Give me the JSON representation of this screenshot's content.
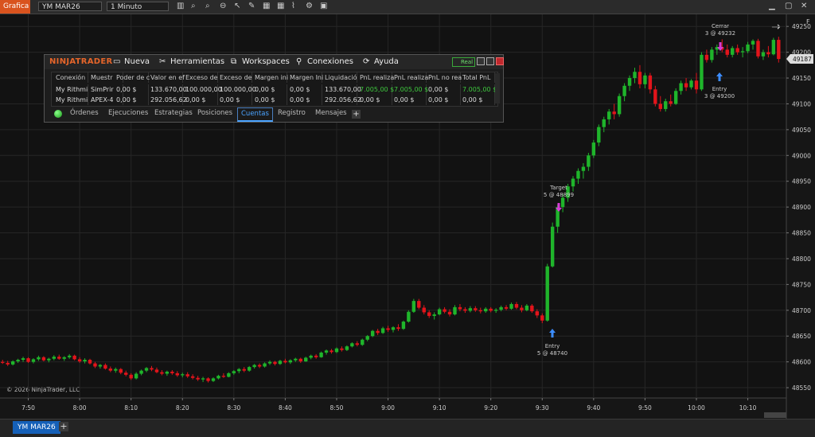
{
  "toolbar": {
    "app_button": "Grafica",
    "instrument": "YM MAR26",
    "interval": "1 Minuto"
  },
  "chart_data": {
    "type": "candlestick",
    "up_color": "#1fb52b",
    "down_color": "#e3141b",
    "ylim": [
      48530,
      49275
    ],
    "yticks": [
      48550,
      48600,
      48650,
      48700,
      48750,
      48800,
      48850,
      48900,
      48950,
      49000,
      49050,
      49100,
      49150,
      49200,
      49250
    ],
    "xlim": [
      -0.5,
      152.5
    ],
    "xticks": [
      {
        "value": 5,
        "label": "7:50"
      },
      {
        "value": 15,
        "label": "8:00"
      },
      {
        "value": 25,
        "label": "8:10"
      },
      {
        "value": 35,
        "label": "8:20"
      },
      {
        "value": 45,
        "label": "8:30"
      },
      {
        "value": 55,
        "label": "8:40"
      },
      {
        "value": 65,
        "label": "8:50"
      },
      {
        "value": 75,
        "label": "9:00"
      },
      {
        "value": 85,
        "label": "9:10"
      },
      {
        "value": 95,
        "label": "9:20"
      },
      {
        "value": 105,
        "label": "9:30"
      },
      {
        "value": 115,
        "label": "9:40"
      },
      {
        "value": 125,
        "label": "9:50"
      },
      {
        "value": 135,
        "label": "10:00"
      },
      {
        "value": 145,
        "label": "10:10"
      }
    ],
    "grid": true,
    "last_price": 49187,
    "axis_flag": "F",
    "copyright": "© 2026 NinjaTrader, LLC",
    "executions": [
      {
        "label": "Entry",
        "detail": "5 @ 48740",
        "side": "buy"
      },
      {
        "label": "Target",
        "detail": "5 @ 48899",
        "side": "sell"
      },
      {
        "label": "Cerrar",
        "detail": "3 @ 49232",
        "side": "sell"
      },
      {
        "label": "Entry",
        "detail": "3 @ 49200",
        "side": "buy"
      }
    ],
    "candles": [
      [
        48600,
        48604,
        48596,
        48598
      ],
      [
        48598,
        48602,
        48592,
        48595
      ],
      [
        48595,
        48603,
        48593,
        48601
      ],
      [
        48601,
        48606,
        48598,
        48604
      ],
      [
        48604,
        48610,
        48600,
        48607
      ],
      [
        48607,
        48609,
        48598,
        48600
      ],
      [
        48600,
        48607,
        48597,
        48605
      ],
      [
        48605,
        48612,
        48602,
        48609
      ],
      [
        48609,
        48611,
        48601,
        48603
      ],
      [
        48603,
        48608,
        48599,
        48606
      ],
      [
        48606,
        48613,
        48603,
        48610
      ],
      [
        48610,
        48614,
        48604,
        48606
      ],
      [
        48606,
        48611,
        48602,
        48609
      ],
      [
        48609,
        48615,
        48606,
        48612
      ],
      [
        48612,
        48614,
        48603,
        48605
      ],
      [
        48605,
        48609,
        48598,
        48601
      ],
      [
        48601,
        48607,
        48597,
        48604
      ],
      [
        48604,
        48606,
        48595,
        48597
      ],
      [
        48597,
        48600,
        48588,
        48591
      ],
      [
        48591,
        48596,
        48587,
        48594
      ],
      [
        48594,
        48597,
        48585,
        48587
      ],
      [
        48587,
        48591,
        48580,
        48583
      ],
      [
        48583,
        48589,
        48579,
        48586
      ],
      [
        48586,
        48588,
        48576,
        48579
      ],
      [
        48579,
        48583,
        48572,
        48575
      ],
      [
        48575,
        48578,
        48565,
        48568
      ],
      [
        48568,
        48580,
        48566,
        48577
      ],
      [
        48577,
        48585,
        48574,
        48583
      ],
      [
        48583,
        48590,
        48580,
        48588
      ],
      [
        48588,
        48592,
        48582,
        48585
      ],
      [
        48585,
        48589,
        48578,
        48580
      ],
      [
        48580,
        48584,
        48574,
        48577
      ],
      [
        48577,
        48583,
        48573,
        48581
      ],
      [
        48581,
        48584,
        48575,
        48578
      ],
      [
        48578,
        48582,
        48571,
        48574
      ],
      [
        48574,
        48579,
        48570,
        48576
      ],
      [
        48576,
        48580,
        48569,
        48572
      ],
      [
        48572,
        48576,
        48566,
        48569
      ],
      [
        48569,
        48573,
        48563,
        48566
      ],
      [
        48566,
        48571,
        48561,
        48568
      ],
      [
        48568,
        48570,
        48560,
        48563
      ],
      [
        48563,
        48570,
        48561,
        48568
      ],
      [
        48568,
        48575,
        48566,
        48573
      ],
      [
        48573,
        48578,
        48569,
        48571
      ],
      [
        48571,
        48580,
        48570,
        48578
      ],
      [
        48578,
        48584,
        48575,
        48582
      ],
      [
        48582,
        48588,
        48578,
        48586
      ],
      [
        48586,
        48590,
        48580,
        48583
      ],
      [
        48583,
        48592,
        48581,
        48590
      ],
      [
        48590,
        48596,
        48587,
        48594
      ],
      [
        48594,
        48597,
        48588,
        48591
      ],
      [
        48591,
        48599,
        48589,
        48597
      ],
      [
        48597,
        48603,
        48594,
        48600
      ],
      [
        48600,
        48602,
        48593,
        48596
      ],
      [
        48596,
        48604,
        48594,
        48602
      ],
      [
        48602,
        48606,
        48597,
        48599
      ],
      [
        48599,
        48605,
        48596,
        48603
      ],
      [
        48603,
        48608,
        48600,
        48606
      ],
      [
        48606,
        48608,
        48598,
        48601
      ],
      [
        48601,
        48610,
        48600,
        48608
      ],
      [
        48608,
        48614,
        48605,
        48612
      ],
      [
        48612,
        48615,
        48606,
        48609
      ],
      [
        48609,
        48620,
        48608,
        48618
      ],
      [
        48618,
        48624,
        48614,
        48622
      ],
      [
        48622,
        48625,
        48616,
        48619
      ],
      [
        48619,
        48628,
        48617,
        48626
      ],
      [
        48626,
        48630,
        48620,
        48623
      ],
      [
        48623,
        48632,
        48621,
        48630
      ],
      [
        48630,
        48638,
        48628,
        48636
      ],
      [
        48636,
        48640,
        48630,
        48633
      ],
      [
        48633,
        48645,
        48631,
        48643
      ],
      [
        48643,
        48652,
        48640,
        48650
      ],
      [
        48650,
        48662,
        48648,
        48660
      ],
      [
        48660,
        48664,
        48652,
        48656
      ],
      [
        48656,
        48668,
        48654,
        48665
      ],
      [
        48665,
        48670,
        48658,
        48662
      ],
      [
        48662,
        48669,
        48657,
        48667
      ],
      [
        48667,
        48673,
        48660,
        48664
      ],
      [
        48664,
        48680,
        48662,
        48678
      ],
      [
        48678,
        48700,
        48676,
        48697
      ],
      [
        48697,
        48722,
        48695,
        48718
      ],
      [
        48718,
        48722,
        48702,
        48705
      ],
      [
        48705,
        48710,
        48692,
        48696
      ],
      [
        48696,
        48700,
        48685,
        48689
      ],
      [
        48689,
        48696,
        48682,
        48692
      ],
      [
        48692,
        48705,
        48690,
        48702
      ],
      [
        48702,
        48706,
        48694,
        48697
      ],
      [
        48697,
        48702,
        48688,
        48692
      ],
      [
        48692,
        48710,
        48690,
        48706
      ],
      [
        48706,
        48712,
        48698,
        48702
      ],
      [
        48702,
        48706,
        48695,
        48699
      ],
      [
        48699,
        48708,
        48696,
        48704
      ],
      [
        48704,
        48708,
        48697,
        48700
      ],
      [
        48700,
        48705,
        48694,
        48698
      ],
      [
        48698,
        48706,
        48695,
        48703
      ],
      [
        48703,
        48706,
        48696,
        48699
      ],
      [
        48699,
        48704,
        48695,
        48701
      ],
      [
        48701,
        48709,
        48698,
        48706
      ],
      [
        48706,
        48710,
        48700,
        48703
      ],
      [
        48703,
        48715,
        48701,
        48712
      ],
      [
        48712,
        48716,
        48702,
        48705
      ],
      [
        48705,
        48710,
        48696,
        48700
      ],
      [
        48700,
        48712,
        48698,
        48709
      ],
      [
        48709,
        48712,
        48695,
        48698
      ],
      [
        48698,
        48702,
        48685,
        48690
      ],
      [
        48690,
        48694,
        48675,
        48680
      ],
      [
        48680,
        48790,
        48678,
        48785
      ],
      [
        48785,
        48870,
        48783,
        48862
      ],
      [
        48862,
        48905,
        48850,
        48900
      ],
      [
        48900,
        48925,
        48890,
        48918
      ],
      [
        48918,
        48945,
        48910,
        48940
      ],
      [
        48940,
        48960,
        48930,
        48955
      ],
      [
        48955,
        48975,
        48945,
        48970
      ],
      [
        48970,
        48985,
        48955,
        48978
      ],
      [
        48978,
        49005,
        48970,
        49000
      ],
      [
        49000,
        49030,
        48995,
        49025
      ],
      [
        49025,
        49060,
        49018,
        49055
      ],
      [
        49055,
        49075,
        49045,
        49070
      ],
      [
        49070,
        49090,
        49060,
        49085
      ],
      [
        49085,
        49100,
        49070,
        49080
      ],
      [
        49080,
        49120,
        49075,
        49115
      ],
      [
        49115,
        49140,
        49105,
        49135
      ],
      [
        49135,
        49155,
        49125,
        49150
      ],
      [
        49150,
        49170,
        49140,
        49162
      ],
      [
        49162,
        49175,
        49130,
        49138
      ],
      [
        49138,
        49160,
        49130,
        49155
      ],
      [
        49155,
        49160,
        49120,
        49128
      ],
      [
        49128,
        49135,
        49095,
        49100
      ],
      [
        49100,
        49115,
        49085,
        49090
      ],
      [
        49090,
        49110,
        49085,
        49105
      ],
      [
        49105,
        49118,
        49095,
        49100
      ],
      [
        49100,
        49130,
        49098,
        49125
      ],
      [
        49125,
        49145,
        49118,
        49140
      ],
      [
        49140,
        49150,
        49125,
        49132
      ],
      [
        49132,
        49148,
        49128,
        49145
      ],
      [
        49145,
        49160,
        49120,
        49128
      ],
      [
        49128,
        49200,
        49125,
        49195
      ],
      [
        49195,
        49205,
        49180,
        49185
      ],
      [
        49185,
        49210,
        49180,
        49205
      ],
      [
        49205,
        49215,
        49195,
        49210
      ],
      [
        49210,
        49225,
        49200,
        49205
      ],
      [
        49205,
        49215,
        49190,
        49195
      ],
      [
        49195,
        49212,
        49190,
        49208
      ],
      [
        49208,
        49215,
        49195,
        49200
      ],
      [
        49200,
        49210,
        49190,
        49202
      ],
      [
        49202,
        49220,
        49198,
        49215
      ],
      [
        49215,
        49225,
        49205,
        49222
      ],
      [
        49222,
        49226,
        49188,
        49192
      ],
      [
        49192,
        49205,
        49185,
        49200
      ],
      [
        49200,
        49212,
        49190,
        49196
      ],
      [
        49196,
        49228,
        49194,
        49224
      ],
      [
        49224,
        49230,
        49180,
        49187
      ]
    ]
  },
  "account_panel": {
    "brand": "NINJATRADER",
    "menu": [
      "Nueva",
      "Herramientas",
      "Workspaces",
      "Conexiones",
      "Ayuda"
    ],
    "real_button": "Real",
    "columns": [
      "Conexión",
      "Muestr",
      "Poder de c",
      "Valor en ef",
      "Exceso de",
      "Exceso de",
      "Margen ini",
      "Margen Ini",
      "Liquidació",
      "PnL realiza",
      "PnL realiza",
      "PnL no rea",
      "Total PnL"
    ],
    "rows": [
      [
        "My Rithmi",
        "SimPrir",
        "0,00 $",
        "133.670,00",
        "100.000,00",
        "100.000,00",
        "0,00 $",
        "0,00 $",
        "133.670,00",
        "7.005,00 $",
        "7.005,00 $",
        "0,00 $",
        "7.005,00 $"
      ],
      [
        "My Rithmi",
        "APEX-4",
        "0,00 $",
        "292.056,62",
        "0,00 $",
        "0,00 $",
        "0,00 $",
        "0,00 $",
        "292.056,62",
        "0,00 $",
        "0,00 $",
        "0,00 $",
        "0,00 $"
      ]
    ],
    "positive_color": "#3ec93e",
    "tabs": [
      "Órdenes",
      "Ejecuciones",
      "Estrategias",
      "Posiciones",
      "Cuentas",
      "Registro",
      "Mensajes"
    ],
    "active_tab": 4
  },
  "bottom_tab": "YM MAR26"
}
